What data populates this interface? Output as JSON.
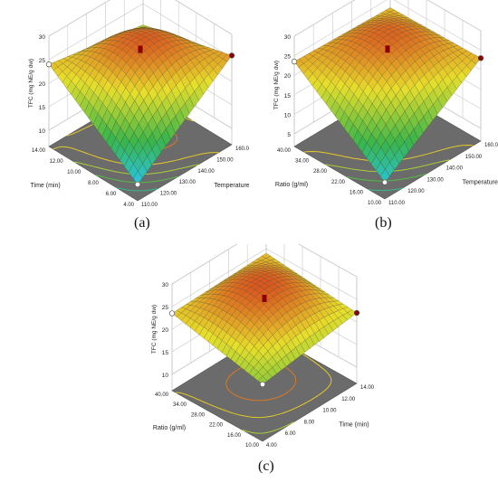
{
  "chart_data": [
    {
      "type": "surface",
      "panel_label": "(a)",
      "zlabel": "TFC (mg NE/g dw)",
      "zticks": [
        "10",
        "15",
        "20",
        "25",
        "30"
      ],
      "zlim": [
        10,
        30
      ],
      "x_factor": {
        "label": "Temperature (°C)",
        "ticks": [
          "110.00",
          "120.00",
          "130.00",
          "140.00",
          "150.00",
          "160.00"
        ],
        "range": [
          110,
          160
        ]
      },
      "y_factor": {
        "label": "Time (min)",
        "ticks": [
          "4.00",
          "6.00",
          "8.00",
          "10.00",
          "12.00",
          "14.00"
        ],
        "range": [
          4,
          14
        ]
      },
      "corner_values": {
        "low_low": 10.0,
        "high_low": 25.5,
        "low_high": 24.0,
        "high_high": 20.5
      },
      "peak_value": 27.5,
      "design_point": 27.0
    },
    {
      "type": "surface",
      "panel_label": "(b)",
      "zlabel": "TFC (mg NE/g dw)",
      "zticks": [
        "5",
        "10",
        "15",
        "20",
        "25",
        "30"
      ],
      "zlim": [
        5,
        30
      ],
      "x_factor": {
        "label": "Temperature (°C)",
        "ticks": [
          "110.00",
          "120.00",
          "130.00",
          "140.00",
          "150.00",
          "160.00"
        ],
        "range": [
          110,
          160
        ]
      },
      "y_factor": {
        "label": "Ratio (g/ml)",
        "ticks": [
          "10.00",
          "16.00",
          "22.00",
          "28.00",
          "34.00",
          "40.00"
        ],
        "range": [
          10,
          40
        ]
      },
      "corner_values": {
        "low_low": 6.0,
        "high_low": 23.0,
        "low_high": 23.5,
        "high_high": 22.5
      },
      "peak_value": 26.0,
      "design_point": 26.0
    },
    {
      "type": "surface",
      "panel_label": "(c)",
      "zlabel": "TFC (mg NE/g dw)",
      "zticks": [
        "10",
        "15",
        "20",
        "25",
        "30"
      ],
      "zlim": [
        10,
        30
      ],
      "x_factor": {
        "label": "Time (min)",
        "ticks": [
          "4.00",
          "6.00",
          "8.00",
          "10.00",
          "12.00",
          "14.00"
        ],
        "range": [
          4,
          14
        ]
      },
      "y_factor": {
        "label": "Ratio (g/ml)",
        "ticks": [
          "10.00",
          "16.00",
          "22.00",
          "28.00",
          "34.00",
          "40.00"
        ],
        "range": [
          10,
          40
        ]
      },
      "corner_values": {
        "low_low": 19.0,
        "high_low": 22.0,
        "low_high": 23.5,
        "high_high": 24.0
      },
      "peak_value": 28.0,
      "design_point": 26.0
    }
  ],
  "colors": {
    "high": "#d62a1a",
    "mid": "#e7df2b",
    "low_green": "#39b54a",
    "low_cyan": "#29c4e8",
    "floor": "#6b6b6b",
    "grid": "#c8c8c8",
    "point": "#8b0000"
  }
}
